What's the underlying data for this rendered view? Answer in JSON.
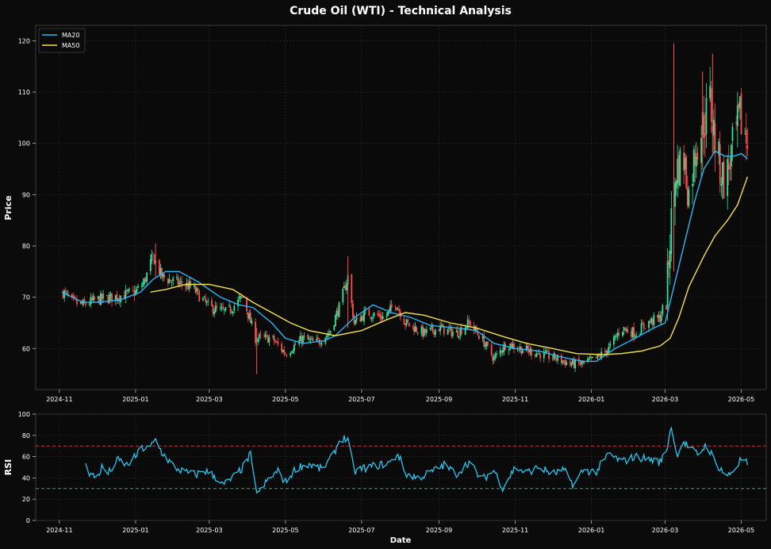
{
  "colors": {
    "background": "#0b0b0b",
    "panel": "#0a0a0a",
    "grid": "#2a2a2a",
    "text": "#ffffff",
    "up_candle": "#2ee59d",
    "down_candle": "#ff4d4d",
    "ma20": "#29b6f6",
    "ma50": "#f4e04d",
    "rsi": "#26c6f0",
    "overbought_line": "#e53935",
    "oversold_line": "#26c28a"
  },
  "chart_data": [
    {
      "id": "price",
      "type": "candlestick",
      "title": "Crude Oil (WTI) - Technical Analysis",
      "ylabel": "Price",
      "ylim": [
        52,
        123
      ],
      "yticks": [
        60,
        70,
        80,
        90,
        100,
        110,
        120
      ],
      "grid": true,
      "legend": {
        "position": "top-left",
        "entries": [
          "MA20",
          "MA50"
        ]
      },
      "x_range": [
        "2024-10-13",
        "2026-05-21"
      ],
      "xticks": [
        "2024-11",
        "2025-01",
        "2025-03",
        "2025-05",
        "2025-07",
        "2025-09",
        "2025-11",
        "2026-01",
        "2026-03",
        "2026-05"
      ],
      "xtick_dates": [
        "2024-11-01",
        "2025-01-01",
        "2025-03-01",
        "2025-05-01",
        "2025-07-01",
        "2025-09-01",
        "2025-11-01",
        "2026-01-01",
        "2026-03-01",
        "2026-05-01"
      ],
      "close_trend": [
        [
          "2024-11-04",
          71
        ],
        [
          "2024-11-12",
          69
        ],
        [
          "2024-11-20",
          68.5
        ],
        [
          "2024-12-01",
          69.5
        ],
        [
          "2024-12-15",
          70
        ],
        [
          "2025-01-01",
          71
        ],
        [
          "2025-01-08",
          73
        ],
        [
          "2025-01-15",
          78
        ],
        [
          "2025-01-22",
          74
        ],
        [
          "2025-02-01",
          73
        ],
        [
          "2025-02-15",
          72
        ],
        [
          "2025-03-01",
          68
        ],
        [
          "2025-03-15",
          67
        ],
        [
          "2025-03-28",
          70
        ],
        [
          "2025-04-07",
          62
        ],
        [
          "2025-04-20",
          62
        ],
        [
          "2025-05-01",
          59
        ],
        [
          "2025-05-15",
          62
        ],
        [
          "2025-05-25",
          61
        ],
        [
          "2025-06-05",
          63
        ],
        [
          "2025-06-13",
          68
        ],
        [
          "2025-06-20",
          74
        ],
        [
          "2025-06-25",
          65
        ],
        [
          "2025-07-05",
          67
        ],
        [
          "2025-07-20",
          66
        ],
        [
          "2025-07-28",
          69
        ],
        [
          "2025-08-05",
          65
        ],
        [
          "2025-08-20",
          63
        ],
        [
          "2025-09-01",
          64
        ],
        [
          "2025-09-15",
          63
        ],
        [
          "2025-09-25",
          65
        ],
        [
          "2025-10-05",
          62
        ],
        [
          "2025-10-15",
          58
        ],
        [
          "2025-10-25",
          61
        ],
        [
          "2025-11-05",
          60
        ],
        [
          "2025-11-20",
          59
        ],
        [
          "2025-12-05",
          58
        ],
        [
          "2025-12-15",
          57
        ],
        [
          "2025-12-25",
          57
        ],
        [
          "2026-01-05",
          58
        ],
        [
          "2026-01-15",
          60
        ],
        [
          "2026-01-25",
          64
        ],
        [
          "2026-02-05",
          63
        ],
        [
          "2026-02-15",
          65
        ],
        [
          "2026-02-25",
          66
        ],
        [
          "2026-03-02",
          70
        ],
        [
          "2026-03-06",
          85
        ],
        [
          "2026-03-10",
          95
        ],
        [
          "2026-03-16",
          97
        ],
        [
          "2026-03-20",
          90
        ],
        [
          "2026-03-26",
          100
        ],
        [
          "2026-04-01",
          104
        ],
        [
          "2026-04-06",
          108
        ],
        [
          "2026-04-12",
          97
        ],
        [
          "2026-04-18",
          92
        ],
        [
          "2026-04-24",
          99
        ],
        [
          "2026-04-30",
          105
        ],
        [
          "2026-05-06",
          100
        ]
      ],
      "spikes": [
        {
          "date": "2026-03-08",
          "high": 119.5,
          "low": 75
        },
        {
          "date": "2026-04-08",
          "high": 117.5,
          "low": 98
        },
        {
          "date": "2026-03-31",
          "high": 114,
          "low": 95
        },
        {
          "date": "2025-06-20",
          "high": 78,
          "low": 64
        },
        {
          "date": "2025-04-08",
          "high": 64,
          "low": 55
        },
        {
          "date": "2025-01-17",
          "high": 80.5,
          "low": 74
        }
      ],
      "series": [
        {
          "name": "MA20",
          "points": [
            [
              "2024-11-03",
              71
            ],
            [
              "2024-11-20",
              69
            ],
            [
              "2024-12-01",
              69
            ],
            [
              "2024-12-20",
              69.5
            ],
            [
              "2025-01-05",
              71
            ],
            [
              "2025-01-15",
              73.5
            ],
            [
              "2025-01-25",
              75
            ],
            [
              "2025-02-05",
              75
            ],
            [
              "2025-02-20",
              73
            ],
            [
              "2025-03-10",
              70
            ],
            [
              "2025-03-25",
              68.5
            ],
            [
              "2025-04-05",
              68
            ],
            [
              "2025-04-20",
              65
            ],
            [
              "2025-05-01",
              62
            ],
            [
              "2025-05-15",
              61
            ],
            [
              "2025-06-01",
              61.5
            ],
            [
              "2025-06-10",
              62.5
            ],
            [
              "2025-06-25",
              66
            ],
            [
              "2025-07-10",
              68.5
            ],
            [
              "2025-07-25",
              67
            ],
            [
              "2025-08-10",
              66
            ],
            [
              "2025-08-25",
              64.5
            ],
            [
              "2025-09-15",
              64
            ],
            [
              "2025-10-01",
              63.5
            ],
            [
              "2025-10-15",
              61
            ],
            [
              "2025-11-01",
              60
            ],
            [
              "2025-11-20",
              59.5
            ],
            [
              "2025-12-05",
              58.5
            ],
            [
              "2025-12-25",
              57.5
            ],
            [
              "2026-01-05",
              57.5
            ],
            [
              "2026-01-20",
              60
            ],
            [
              "2026-02-05",
              62
            ],
            [
              "2026-02-20",
              64
            ],
            [
              "2026-03-01",
              65
            ],
            [
              "2026-03-10",
              74
            ],
            [
              "2026-03-18",
              82
            ],
            [
              "2026-03-25",
              89
            ],
            [
              "2026-04-01",
              95
            ],
            [
              "2026-04-10",
              98.5
            ],
            [
              "2026-04-18",
              97.5
            ],
            [
              "2026-04-25",
              97.5
            ],
            [
              "2026-05-01",
              98
            ],
            [
              "2026-05-06",
              97
            ]
          ]
        },
        {
          "name": "MA50",
          "points": [
            [
              "2025-01-13",
              71
            ],
            [
              "2025-01-25",
              71.5
            ],
            [
              "2025-02-10",
              72.5
            ],
            [
              "2025-03-01",
              72.5
            ],
            [
              "2025-03-20",
              71.5
            ],
            [
              "2025-04-05",
              69
            ],
            [
              "2025-04-20",
              67
            ],
            [
              "2025-05-05",
              65
            ],
            [
              "2025-05-20",
              63.5
            ],
            [
              "2025-06-10",
              62.5
            ],
            [
              "2025-07-01",
              63.5
            ],
            [
              "2025-07-20",
              65.5
            ],
            [
              "2025-08-05",
              67
            ],
            [
              "2025-08-20",
              66.5
            ],
            [
              "2025-09-10",
              65
            ],
            [
              "2025-10-01",
              64
            ],
            [
              "2025-10-20",
              62.5
            ],
            [
              "2025-11-10",
              61
            ],
            [
              "2025-12-01",
              60
            ],
            [
              "2025-12-20",
              59
            ],
            [
              "2026-01-10",
              58.8
            ],
            [
              "2026-01-25",
              59
            ],
            [
              "2026-02-10",
              59.5
            ],
            [
              "2026-02-25",
              60.5
            ],
            [
              "2026-03-05",
              62
            ],
            [
              "2026-03-12",
              66
            ],
            [
              "2026-03-20",
              72
            ],
            [
              "2026-04-01",
              78
            ],
            [
              "2026-04-10",
              82
            ],
            [
              "2026-04-20",
              85
            ],
            [
              "2026-04-28",
              88
            ],
            [
              "2026-05-06",
              93.5
            ]
          ]
        }
      ]
    },
    {
      "id": "rsi",
      "type": "line",
      "xlabel": "Date",
      "ylabel": "RSI",
      "ylim": [
        0,
        100
      ],
      "yticks": [
        0,
        20,
        40,
        60,
        80,
        100
      ],
      "grid": true,
      "x_range": [
        "2024-10-13",
        "2026-05-21"
      ],
      "xticks": [
        "2024-11",
        "2025-01",
        "2025-03",
        "2025-05",
        "2025-07",
        "2025-09",
        "2025-11",
        "2026-01",
        "2026-03",
        "2026-05"
      ],
      "xtick_dates": [
        "2024-11-01",
        "2025-01-01",
        "2025-03-01",
        "2025-05-01",
        "2025-07-01",
        "2025-09-01",
        "2025-11-01",
        "2026-01-01",
        "2026-03-01",
        "2026-05-01"
      ],
      "reference_lines": [
        {
          "value": 70,
          "style": "dashed",
          "color": "#e53935"
        },
        {
          "value": 30,
          "style": "dashed",
          "color": "#26c28a"
        }
      ],
      "series": [
        {
          "name": "",
          "points": [
            [
              "2024-11-22",
              57
            ],
            [
              "2024-11-25",
              44
            ],
            [
              "2024-12-01",
              40
            ],
            [
              "2024-12-05",
              50
            ],
            [
              "2024-12-10",
              44
            ],
            [
              "2024-12-18",
              57
            ],
            [
              "2024-12-25",
              52
            ],
            [
              "2025-01-01",
              60
            ],
            [
              "2025-01-06",
              68
            ],
            [
              "2025-01-12",
              67
            ],
            [
              "2025-01-17",
              76
            ],
            [
              "2025-01-22",
              64
            ],
            [
              "2025-02-01",
              50
            ],
            [
              "2025-02-10",
              45
            ],
            [
              "2025-02-18",
              43
            ],
            [
              "2025-02-25",
              47
            ],
            [
              "2025-03-05",
              42
            ],
            [
              "2025-03-12",
              33
            ],
            [
              "2025-03-20",
              40
            ],
            [
              "2025-03-28",
              50
            ],
            [
              "2025-04-03",
              62
            ],
            [
              "2025-04-06",
              32
            ],
            [
              "2025-04-10",
              26
            ],
            [
              "2025-04-18",
              40
            ],
            [
              "2025-04-25",
              46
            ],
            [
              "2025-05-01",
              36
            ],
            [
              "2025-05-10",
              50
            ],
            [
              "2025-05-20",
              53
            ],
            [
              "2025-05-30",
              48
            ],
            [
              "2025-06-08",
              60
            ],
            [
              "2025-06-14",
              78
            ],
            [
              "2025-06-20",
              76
            ],
            [
              "2025-06-25",
              46
            ],
            [
              "2025-07-05",
              50
            ],
            [
              "2025-07-15",
              52
            ],
            [
              "2025-07-25",
              55
            ],
            [
              "2025-07-30",
              63
            ],
            [
              "2025-08-05",
              44
            ],
            [
              "2025-08-15",
              40
            ],
            [
              "2025-08-25",
              45
            ],
            [
              "2025-09-05",
              52
            ],
            [
              "2025-09-15",
              44
            ],
            [
              "2025-09-25",
              55
            ],
            [
              "2025-10-05",
              38
            ],
            [
              "2025-10-15",
              47
            ],
            [
              "2025-10-22",
              31
            ],
            [
              "2025-11-01",
              50
            ],
            [
              "2025-11-10",
              45
            ],
            [
              "2025-11-20",
              50
            ],
            [
              "2025-12-01",
              44
            ],
            [
              "2025-12-10",
              47
            ],
            [
              "2025-12-18",
              33
            ],
            [
              "2025-12-25",
              47
            ],
            [
              "2026-01-05",
              46
            ],
            [
              "2026-01-15",
              63
            ],
            [
              "2026-01-25",
              55
            ],
            [
              "2026-02-05",
              60
            ],
            [
              "2026-02-15",
              58
            ],
            [
              "2026-02-25",
              55
            ],
            [
              "2026-03-02",
              65
            ],
            [
              "2026-03-06",
              90
            ],
            [
              "2026-03-10",
              62
            ],
            [
              "2026-03-16",
              74
            ],
            [
              "2026-03-22",
              66
            ],
            [
              "2026-03-28",
              62
            ],
            [
              "2026-04-03",
              72
            ],
            [
              "2026-04-08",
              60
            ],
            [
              "2026-04-12",
              52
            ],
            [
              "2026-04-20",
              41
            ],
            [
              "2026-04-28",
              52
            ],
            [
              "2026-05-02",
              60
            ],
            [
              "2026-05-06",
              52
            ]
          ]
        }
      ]
    }
  ]
}
